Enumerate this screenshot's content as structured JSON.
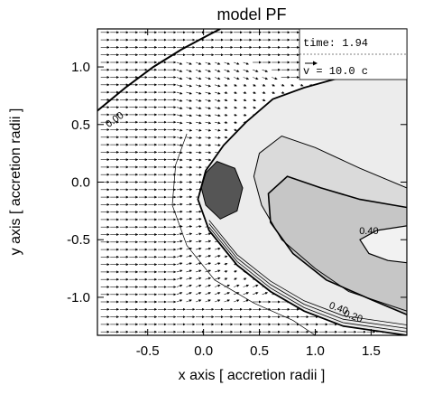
{
  "chart_data": {
    "type": "contour",
    "title": "model PF",
    "xlabel": "x axis [ accretion radii ]",
    "ylabel": "y axis [ accretion radii ]",
    "xlim": [
      -0.95,
      1.82
    ],
    "ylim": [
      -1.33,
      1.33
    ],
    "xticks": [
      -0.5,
      0.0,
      0.5,
      1.0,
      1.5
    ],
    "yticks": [
      -1.0,
      -0.5,
      0.0,
      0.5,
      1.0
    ],
    "xtick_labels": [
      "-0.5",
      "0.0",
      "0.5",
      "1.0",
      "1.5"
    ],
    "ytick_labels": [
      "-1.0",
      "-0.5",
      "0.0",
      "0.5",
      "1.0"
    ],
    "legend": {
      "time_text": "time: 1.94",
      "velocity_text": "v = 10.0 c",
      "placement": "top-right"
    },
    "contour_labels": [
      {
        "text": "0.00",
        "x": -0.78,
        "y": 0.52
      },
      {
        "text": "0.40",
        "x": 1.48,
        "y": -0.45
      },
      {
        "text": "0.40",
        "x": 1.2,
        "y": -1.12
      },
      {
        "text": "0.20",
        "x": 1.33,
        "y": -1.19
      }
    ],
    "features": {
      "zero_contour": [
        [
          -0.95,
          0.62
        ],
        [
          -0.7,
          0.82
        ],
        [
          -0.45,
          1.0
        ],
        [
          -0.2,
          1.15
        ],
        [
          0.05,
          1.28
        ],
        [
          0.15,
          1.33
        ]
      ],
      "outer_boundary": [
        [
          1.82,
          0.9
        ],
        [
          1.2,
          0.9
        ],
        [
          0.9,
          0.82
        ],
        [
          0.62,
          0.72
        ],
        [
          0.38,
          0.52
        ],
        [
          0.18,
          0.32
        ],
        [
          0.02,
          0.1
        ],
        [
          -0.05,
          -0.15
        ],
        [
          0.05,
          -0.42
        ],
        [
          0.3,
          -0.72
        ],
        [
          0.6,
          -0.95
        ],
        [
          0.9,
          -1.12
        ],
        [
          1.25,
          -1.25
        ],
        [
          1.82,
          -1.33
        ]
      ],
      "outer_faint": [
        [
          -0.15,
          0.42
        ],
        [
          -0.25,
          0.15
        ],
        [
          -0.28,
          -0.2
        ],
        [
          -0.15,
          -0.55
        ],
        [
          0.1,
          -0.85
        ],
        [
          0.45,
          -1.05
        ],
        [
          0.8,
          -1.2
        ],
        [
          1.0,
          -1.33
        ]
      ],
      "band_1": [
        [
          1.82,
          -0.05
        ],
        [
          1.4,
          0.12
        ],
        [
          1.0,
          0.3
        ],
        [
          0.7,
          0.4
        ],
        [
          0.5,
          0.25
        ],
        [
          0.45,
          0.05
        ],
        [
          0.52,
          -0.2
        ],
        [
          0.7,
          -0.5
        ],
        [
          1.0,
          -0.75
        ],
        [
          1.3,
          -0.95
        ],
        [
          1.82,
          -1.12
        ]
      ],
      "band_2": [
        [
          1.82,
          -0.22
        ],
        [
          1.4,
          -0.15
        ],
        [
          1.05,
          -0.05
        ],
        [
          0.75,
          0.05
        ],
        [
          0.58,
          -0.1
        ],
        [
          0.6,
          -0.35
        ],
        [
          0.8,
          -0.62
        ],
        [
          1.1,
          -0.85
        ],
        [
          1.5,
          -1.02
        ],
        [
          1.82,
          -1.15
        ]
      ],
      "inner_loop": [
        [
          1.82,
          -0.38
        ],
        [
          1.55,
          -0.42
        ],
        [
          1.4,
          -0.5
        ],
        [
          1.48,
          -0.62
        ],
        [
          1.65,
          -0.68
        ],
        [
          1.82,
          -0.7
        ]
      ],
      "compact_core": [
        [
          0.02,
          0.08
        ],
        [
          0.12,
          0.18
        ],
        [
          0.28,
          0.12
        ],
        [
          0.35,
          -0.05
        ],
        [
          0.3,
          -0.25
        ],
        [
          0.15,
          -0.32
        ],
        [
          0.02,
          -0.2
        ],
        [
          -0.02,
          -0.05
        ]
      ]
    }
  }
}
